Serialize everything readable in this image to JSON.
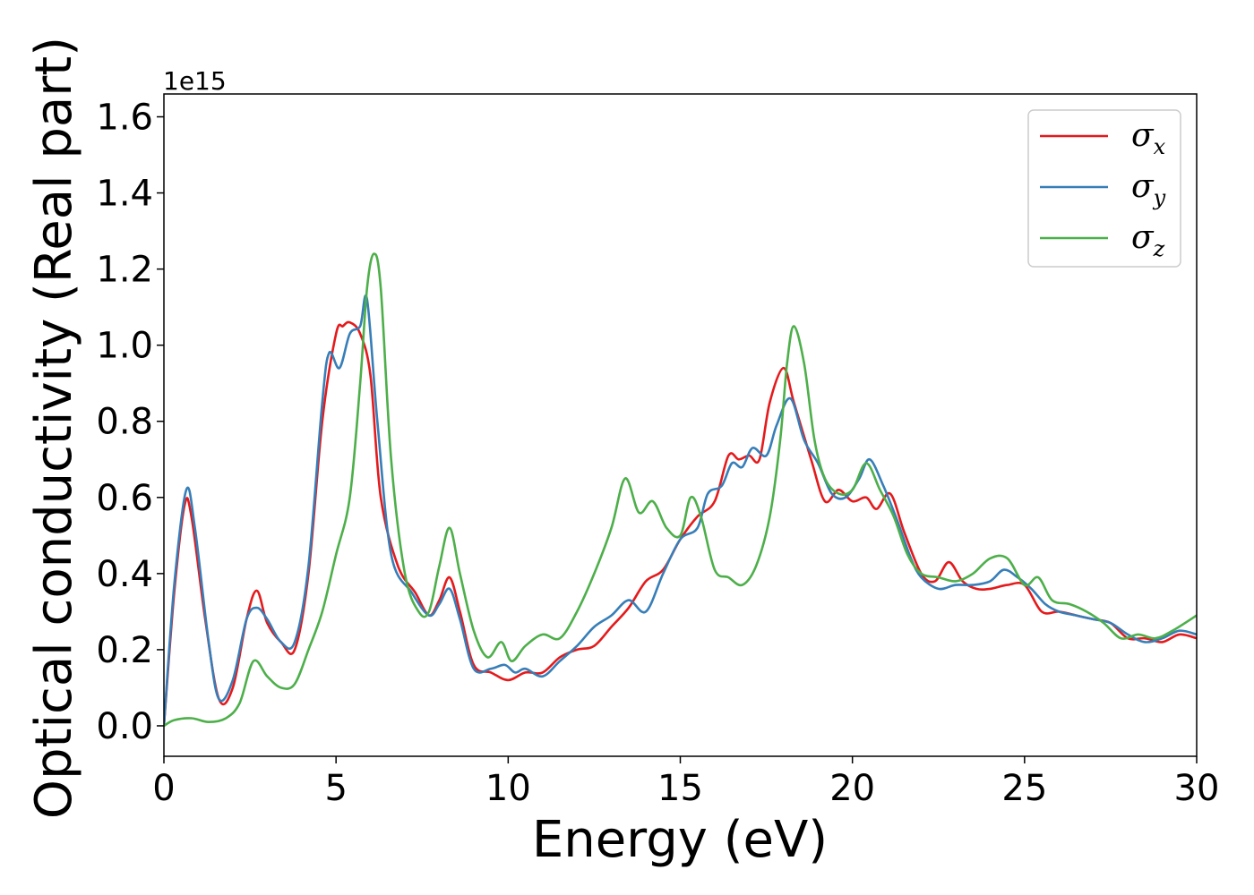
{
  "chart_data": {
    "type": "line",
    "title": "",
    "xlabel": "Energy (eV)",
    "ylabel": "Optical conductivity (Real part)",
    "y_offset_label": "1e15",
    "xlim": [
      0,
      30
    ],
    "ylim": [
      -0.08,
      1.66
    ],
    "x_ticks": [
      0,
      5,
      10,
      15,
      20,
      25,
      30
    ],
    "y_ticks": [
      0.0,
      0.2,
      0.4,
      0.6,
      0.8,
      1.0,
      1.2,
      1.4,
      1.6
    ],
    "x_tick_labels": [
      "0",
      "5",
      "10",
      "15",
      "20",
      "25",
      "30"
    ],
    "y_tick_labels": [
      "0.0",
      "0.2",
      "0.4",
      "0.6",
      "0.8",
      "1.0",
      "1.2",
      "1.4",
      "1.6"
    ],
    "grid": false,
    "legend_position": "top-right",
    "series": [
      {
        "name": "σ",
        "sub": "x",
        "color": "#e41a1c",
        "points": [
          [
            0,
            0
          ],
          [
            0.3,
            0.35
          ],
          [
            0.6,
            0.58
          ],
          [
            0.8,
            0.55
          ],
          [
            1.2,
            0.28
          ],
          [
            1.6,
            0.07
          ],
          [
            2.0,
            0.1
          ],
          [
            2.4,
            0.28
          ],
          [
            2.7,
            0.355
          ],
          [
            3.0,
            0.27
          ],
          [
            3.4,
            0.22
          ],
          [
            3.8,
            0.2
          ],
          [
            4.2,
            0.4
          ],
          [
            4.6,
            0.8
          ],
          [
            5.0,
            1.03
          ],
          [
            5.2,
            1.05
          ],
          [
            5.4,
            1.06
          ],
          [
            5.7,
            1.03
          ],
          [
            6.0,
            0.92
          ],
          [
            6.3,
            0.6
          ],
          [
            6.8,
            0.42
          ],
          [
            7.3,
            0.35
          ],
          [
            7.7,
            0.29
          ],
          [
            8.0,
            0.33
          ],
          [
            8.3,
            0.39
          ],
          [
            8.6,
            0.3
          ],
          [
            9.0,
            0.16
          ],
          [
            9.5,
            0.14
          ],
          [
            10.0,
            0.12
          ],
          [
            10.5,
            0.14
          ],
          [
            11.0,
            0.14
          ],
          [
            11.5,
            0.18
          ],
          [
            12.0,
            0.2
          ],
          [
            12.5,
            0.21
          ],
          [
            13.0,
            0.26
          ],
          [
            13.5,
            0.31
          ],
          [
            14.0,
            0.38
          ],
          [
            14.5,
            0.41
          ],
          [
            15.0,
            0.49
          ],
          [
            15.5,
            0.55
          ],
          [
            16.0,
            0.59
          ],
          [
            16.4,
            0.71
          ],
          [
            16.7,
            0.7
          ],
          [
            17.0,
            0.71
          ],
          [
            17.3,
            0.7
          ],
          [
            17.6,
            0.85
          ],
          [
            18.0,
            0.94
          ],
          [
            18.3,
            0.85
          ],
          [
            18.8,
            0.7
          ],
          [
            19.2,
            0.59
          ],
          [
            19.6,
            0.62
          ],
          [
            20.0,
            0.59
          ],
          [
            20.4,
            0.6
          ],
          [
            20.7,
            0.57
          ],
          [
            21.1,
            0.61
          ],
          [
            21.5,
            0.51
          ],
          [
            22.0,
            0.4
          ],
          [
            22.4,
            0.38
          ],
          [
            22.8,
            0.43
          ],
          [
            23.2,
            0.38
          ],
          [
            23.6,
            0.36
          ],
          [
            24.0,
            0.36
          ],
          [
            24.5,
            0.37
          ],
          [
            25.0,
            0.37
          ],
          [
            25.5,
            0.3
          ],
          [
            26.0,
            0.3
          ],
          [
            26.5,
            0.29
          ],
          [
            27.0,
            0.28
          ],
          [
            27.5,
            0.27
          ],
          [
            28.0,
            0.23
          ],
          [
            28.5,
            0.23
          ],
          [
            29.0,
            0.22
          ],
          [
            29.5,
            0.24
          ],
          [
            30.0,
            0.23
          ]
        ]
      },
      {
        "name": "σ",
        "sub": "y",
        "color": "#377eb8",
        "points": [
          [
            0,
            0
          ],
          [
            0.3,
            0.37
          ],
          [
            0.65,
            0.62
          ],
          [
            0.9,
            0.52
          ],
          [
            1.3,
            0.22
          ],
          [
            1.6,
            0.07
          ],
          [
            2.0,
            0.12
          ],
          [
            2.4,
            0.28
          ],
          [
            2.7,
            0.31
          ],
          [
            3.0,
            0.28
          ],
          [
            3.4,
            0.22
          ],
          [
            3.8,
            0.22
          ],
          [
            4.2,
            0.42
          ],
          [
            4.6,
            0.85
          ],
          [
            4.8,
            0.98
          ],
          [
            5.1,
            0.94
          ],
          [
            5.4,
            1.03
          ],
          [
            5.7,
            1.05
          ],
          [
            5.9,
            1.12
          ],
          [
            6.2,
            0.8
          ],
          [
            6.6,
            0.45
          ],
          [
            7.2,
            0.35
          ],
          [
            7.7,
            0.29
          ],
          [
            8.0,
            0.32
          ],
          [
            8.3,
            0.36
          ],
          [
            8.6,
            0.28
          ],
          [
            9.0,
            0.15
          ],
          [
            9.5,
            0.15
          ],
          [
            9.9,
            0.16
          ],
          [
            10.2,
            0.14
          ],
          [
            10.5,
            0.15
          ],
          [
            11.0,
            0.13
          ],
          [
            11.5,
            0.17
          ],
          [
            12.0,
            0.21
          ],
          [
            12.5,
            0.26
          ],
          [
            13.0,
            0.29
          ],
          [
            13.5,
            0.33
          ],
          [
            14.0,
            0.3
          ],
          [
            14.5,
            0.4
          ],
          [
            15.0,
            0.49
          ],
          [
            15.5,
            0.52
          ],
          [
            15.8,
            0.61
          ],
          [
            16.2,
            0.63
          ],
          [
            16.5,
            0.69
          ],
          [
            16.8,
            0.68
          ],
          [
            17.1,
            0.73
          ],
          [
            17.5,
            0.71
          ],
          [
            17.8,
            0.79
          ],
          [
            18.2,
            0.86
          ],
          [
            18.6,
            0.75
          ],
          [
            19.0,
            0.69
          ],
          [
            19.4,
            0.61
          ],
          [
            19.8,
            0.6
          ],
          [
            20.2,
            0.65
          ],
          [
            20.5,
            0.7
          ],
          [
            20.9,
            0.63
          ],
          [
            21.3,
            0.54
          ],
          [
            21.7,
            0.44
          ],
          [
            22.0,
            0.39
          ],
          [
            22.5,
            0.36
          ],
          [
            23.0,
            0.37
          ],
          [
            23.5,
            0.37
          ],
          [
            24.0,
            0.38
          ],
          [
            24.4,
            0.41
          ],
          [
            24.8,
            0.39
          ],
          [
            25.2,
            0.36
          ],
          [
            25.6,
            0.32
          ],
          [
            26.0,
            0.3
          ],
          [
            26.5,
            0.29
          ],
          [
            27.0,
            0.28
          ],
          [
            27.5,
            0.27
          ],
          [
            28.0,
            0.24
          ],
          [
            28.5,
            0.22
          ],
          [
            29.0,
            0.23
          ],
          [
            29.5,
            0.25
          ],
          [
            30.0,
            0.24
          ]
        ]
      },
      {
        "name": "σ",
        "sub": "z",
        "color": "#4daf4a",
        "points": [
          [
            0,
            0
          ],
          [
            0.3,
            0.015
          ],
          [
            0.8,
            0.02
          ],
          [
            1.3,
            0.01
          ],
          [
            1.8,
            0.02
          ],
          [
            2.2,
            0.06
          ],
          [
            2.6,
            0.17
          ],
          [
            3.0,
            0.13
          ],
          [
            3.4,
            0.1
          ],
          [
            3.8,
            0.11
          ],
          [
            4.2,
            0.2
          ],
          [
            4.6,
            0.3
          ],
          [
            5.0,
            0.45
          ],
          [
            5.4,
            0.6
          ],
          [
            5.7,
            0.9
          ],
          [
            5.9,
            1.15
          ],
          [
            6.1,
            1.24
          ],
          [
            6.3,
            1.15
          ],
          [
            6.6,
            0.7
          ],
          [
            7.0,
            0.4
          ],
          [
            7.4,
            0.3
          ],
          [
            7.7,
            0.3
          ],
          [
            8.0,
            0.42
          ],
          [
            8.3,
            0.52
          ],
          [
            8.6,
            0.4
          ],
          [
            9.0,
            0.25
          ],
          [
            9.4,
            0.18
          ],
          [
            9.8,
            0.22
          ],
          [
            10.1,
            0.17
          ],
          [
            10.5,
            0.21
          ],
          [
            11.0,
            0.24
          ],
          [
            11.5,
            0.23
          ],
          [
            12.0,
            0.3
          ],
          [
            12.5,
            0.4
          ],
          [
            13.0,
            0.52
          ],
          [
            13.4,
            0.65
          ],
          [
            13.8,
            0.56
          ],
          [
            14.2,
            0.59
          ],
          [
            14.6,
            0.52
          ],
          [
            15.0,
            0.5
          ],
          [
            15.3,
            0.6
          ],
          [
            15.6,
            0.55
          ],
          [
            16.0,
            0.41
          ],
          [
            16.4,
            0.39
          ],
          [
            16.8,
            0.37
          ],
          [
            17.2,
            0.42
          ],
          [
            17.6,
            0.55
          ],
          [
            17.9,
            0.75
          ],
          [
            18.1,
            0.95
          ],
          [
            18.3,
            1.05
          ],
          [
            18.6,
            0.95
          ],
          [
            18.9,
            0.75
          ],
          [
            19.2,
            0.65
          ],
          [
            19.6,
            0.61
          ],
          [
            20.0,
            0.62
          ],
          [
            20.4,
            0.69
          ],
          [
            20.8,
            0.62
          ],
          [
            21.2,
            0.55
          ],
          [
            21.6,
            0.45
          ],
          [
            22.0,
            0.4
          ],
          [
            22.5,
            0.39
          ],
          [
            23.0,
            0.38
          ],
          [
            23.5,
            0.4
          ],
          [
            24.0,
            0.44
          ],
          [
            24.5,
            0.44
          ],
          [
            25.0,
            0.37
          ],
          [
            25.4,
            0.39
          ],
          [
            25.8,
            0.33
          ],
          [
            26.3,
            0.32
          ],
          [
            26.8,
            0.3
          ],
          [
            27.3,
            0.27
          ],
          [
            27.8,
            0.23
          ],
          [
            28.3,
            0.24
          ],
          [
            28.8,
            0.23
          ],
          [
            29.3,
            0.25
          ],
          [
            30.0,
            0.29
          ]
        ]
      }
    ]
  }
}
